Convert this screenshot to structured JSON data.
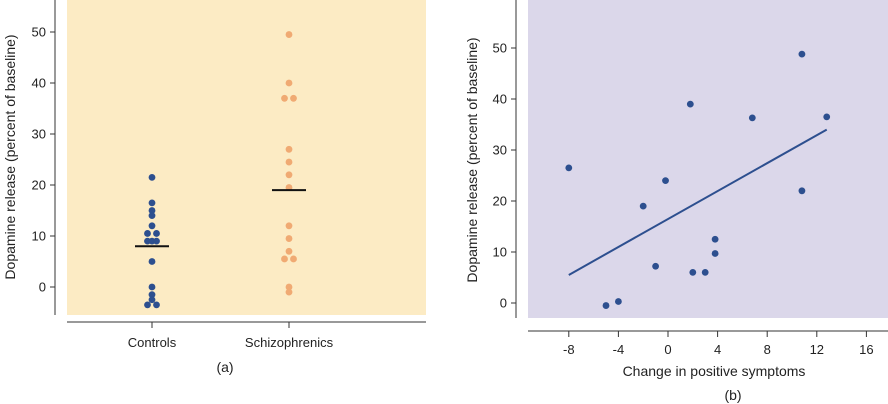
{
  "chart_data": [
    {
      "type": "scatter",
      "panel_label": "(a)",
      "categories": [
        "Controls",
        "Schizophrenics"
      ],
      "ylabel": "Dopamine release (percent of baseline)",
      "xlabel": "",
      "ylim": [
        -5,
        55
      ],
      "yticks": [
        0,
        10,
        20,
        30,
        40,
        50
      ],
      "grid": false,
      "background_color": "#fcebc4",
      "series": [
        {
          "category": "Controls",
          "color": "#2d4f8f",
          "mean": 8,
          "points": [
            {
              "x": 0,
              "y": 21.5
            },
            {
              "x": 0,
              "y": 16.5
            },
            {
              "x": 0,
              "y": 15
            },
            {
              "x": 0,
              "y": 14
            },
            {
              "x": 0,
              "y": 12
            },
            {
              "x": -1,
              "y": 10.5
            },
            {
              "x": 1,
              "y": 10.5
            },
            {
              "x": -1,
              "y": 9
            },
            {
              "x": 0,
              "y": 9
            },
            {
              "x": 1,
              "y": 9
            },
            {
              "x": 0,
              "y": 5
            },
            {
              "x": 0,
              "y": 0
            },
            {
              "x": 0,
              "y": -1.5
            },
            {
              "x": 0,
              "y": -2.5
            },
            {
              "x": -1,
              "y": -3.5
            },
            {
              "x": 1,
              "y": -3.5
            }
          ]
        },
        {
          "category": "Schizophrenics",
          "color": "#f0aa73",
          "mean": 19,
          "points": [
            {
              "x": 0,
              "y": 49.5
            },
            {
              "x": 0,
              "y": 40
            },
            {
              "x": -1,
              "y": 37
            },
            {
              "x": 1,
              "y": 37
            },
            {
              "x": 0,
              "y": 27
            },
            {
              "x": 0,
              "y": 24.5
            },
            {
              "x": 0,
              "y": 22
            },
            {
              "x": 0,
              "y": 19.5
            },
            {
              "x": 0,
              "y": 12
            },
            {
              "x": 0,
              "y": 9.5
            },
            {
              "x": 0,
              "y": 7
            },
            {
              "x": -1,
              "y": 5.5
            },
            {
              "x": 1,
              "y": 5.5
            },
            {
              "x": 0,
              "y": 0
            },
            {
              "x": 0,
              "y": -1
            }
          ]
        }
      ]
    },
    {
      "type": "scatter",
      "panel_label": "(b)",
      "xlabel": "Change in positive symptoms",
      "ylabel": "Dopamine release (percent of baseline)",
      "xlim": [
        -12,
        16
      ],
      "ylim": [
        -3,
        55
      ],
      "xticks": [
        -8,
        -4,
        0,
        4,
        8,
        12,
        16
      ],
      "yticks": [
        0,
        10,
        20,
        30,
        40,
        50
      ],
      "grid": false,
      "background_color": "#dbd7ea",
      "point_color": "#2d4f8f",
      "points": [
        {
          "x": -8,
          "y": 26.5
        },
        {
          "x": -5,
          "y": -0.5
        },
        {
          "x": -4,
          "y": 0.3
        },
        {
          "x": -2,
          "y": 19
        },
        {
          "x": -1,
          "y": 7.2
        },
        {
          "x": -0.2,
          "y": 24
        },
        {
          "x": 1.8,
          "y": 39
        },
        {
          "x": 2,
          "y": 6
        },
        {
          "x": 3,
          "y": 6
        },
        {
          "x": 3.8,
          "y": 12.5
        },
        {
          "x": 3.8,
          "y": 9.7
        },
        {
          "x": 6.8,
          "y": 36.3
        },
        {
          "x": 10.8,
          "y": 48.8
        },
        {
          "x": 10.8,
          "y": 22
        },
        {
          "x": 12.8,
          "y": 36.5
        }
      ],
      "trendline": {
        "x": [
          -8,
          12.8
        ],
        "y": [
          5.5,
          34
        ],
        "color": "#2d4f8f"
      }
    }
  ]
}
